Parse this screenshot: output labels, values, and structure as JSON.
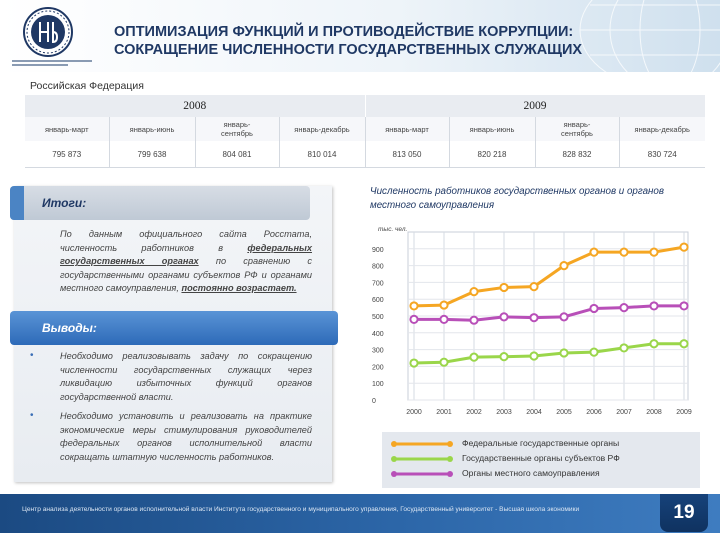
{
  "header": {
    "title_line1": "ОПТИМИЗАЦИЯ ФУНКЦИЙ И ПРОТИВОДЕЙСТВИЕ КОРРУПЦИИ:",
    "title_line2": "СОКРАЩЕНИЕ ЧИСЛЕННОСТИ ГОСУДАРСТВЕННЫХ СЛУЖАЩИХ"
  },
  "region_label": "Российская  Федерация",
  "table": {
    "years": [
      "2008",
      "2009"
    ],
    "periods": [
      "январь-март",
      "январь-июнь",
      "январь-сентябрь",
      "январь-декабрь",
      "январь-март",
      "январь-июнь",
      "январь-сентябрь",
      "январь-декабрь"
    ],
    "periods_wrapped": [
      [
        "январь-март"
      ],
      [
        "январь-июнь"
      ],
      [
        "январь-",
        "сентябрь"
      ],
      [
        "январь-декабрь"
      ],
      [
        "январь-март"
      ],
      [
        "январь-июнь"
      ],
      [
        "январь-",
        "сентябрь"
      ],
      [
        "январь-декабрь"
      ]
    ],
    "values": [
      "795 873",
      "799 638",
      "804 081",
      "810 014",
      "813 050",
      "820 218",
      "828 832",
      "830 724"
    ]
  },
  "itogi": {
    "heading": "Итоги:",
    "text_part1": "По данным официального сайта Росстата, численность работников в ",
    "text_bold1": "федеральных государственных органах",
    "text_part2": " по сравнению с государственными органами субъектов РФ и органами местного самоуправления, ",
    "text_bold2": "постоянно возрастает."
  },
  "vyvody": {
    "heading": "Выводы:",
    "bullets": [
      "Необходимо реализовывать задачу по сокращению численности государственных служащих через ликвидацию избыточных функций органов государственной власти.",
      "Необходимо установить и реализовать на практике экономические меры стимулирования руководителей федеральных органов исполнительной власти сокращать штатную численность работников."
    ],
    "bullet_symbol": "•"
  },
  "chart_data": {
    "type": "line",
    "title": "Численность работников государственных органов и органов местного самоуправления",
    "ylabel": "тыс. чел.",
    "ylim": [
      0,
      1000
    ],
    "yticks": [
      0,
      100,
      200,
      300,
      400,
      500,
      600,
      700,
      800,
      900
    ],
    "x": [
      "2000",
      "2001",
      "2002",
      "2003",
      "2004",
      "2005",
      "2006",
      "2007",
      "2008",
      "2009"
    ],
    "series": [
      {
        "name": "Федеральные государственные органы",
        "color": "#f5a623",
        "values": [
          560,
          565,
          645,
          670,
          675,
          800,
          880,
          880,
          880,
          910
        ]
      },
      {
        "name": "Государственные органы субъектов РФ",
        "color": "#9ad64a",
        "values": [
          220,
          225,
          255,
          258,
          262,
          280,
          285,
          310,
          335,
          335
        ]
      },
      {
        "name": "Органы местного самоуправления",
        "color": "#b84fb8",
        "values": [
          480,
          480,
          475,
          495,
          490,
          495,
          545,
          550,
          560,
          560
        ]
      }
    ]
  },
  "footer": {
    "text": "Центр анализа деятельности органов исполнительной власти Института государственного  и муниципального управления, Государственный университет - Высшая школа экономики",
    "page_number": "19"
  }
}
